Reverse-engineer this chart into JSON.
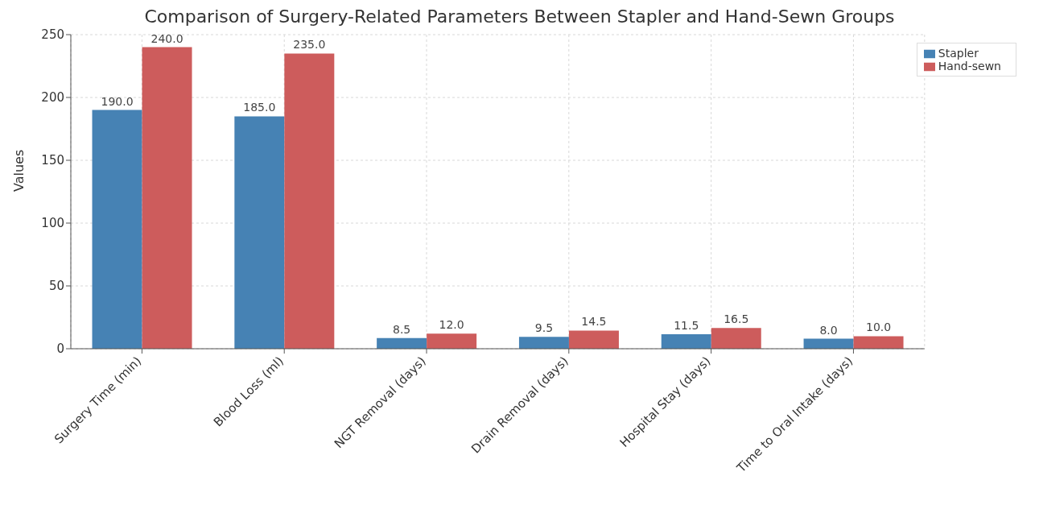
{
  "chart_data": {
    "type": "bar",
    "title": "Comparison of Surgery-Related Parameters Between Stapler and Hand-Sewn Groups",
    "ylabel": "Values",
    "categories": [
      "Surgery Time (min)",
      "Blood Loss (ml)",
      "NGT Removal (days)",
      "Drain Removal (days)",
      "Hospital Stay (days)",
      "Time to Oral Intake (days)"
    ],
    "series": [
      {
        "name": "Stapler",
        "color": "#4682b4",
        "values": [
          190,
          185,
          8.5,
          9.5,
          11.5,
          8
        ],
        "value_labels": [
          "190.0",
          "185.0",
          "8.5",
          "9.5",
          "11.5",
          "8.0"
        ]
      },
      {
        "name": "Hand-sewn",
        "color": "#cd5c5c",
        "values": [
          240,
          235,
          12,
          14.5,
          16.5,
          10
        ],
        "value_labels": [
          "240.0",
          "235.0",
          "12.0",
          "14.5",
          "16.5",
          "10.0"
        ]
      }
    ],
    "ylim": [
      0,
      250
    ],
    "yticks": [
      0,
      50,
      100,
      150,
      200,
      250
    ],
    "grid": true,
    "legend": "top right"
  }
}
